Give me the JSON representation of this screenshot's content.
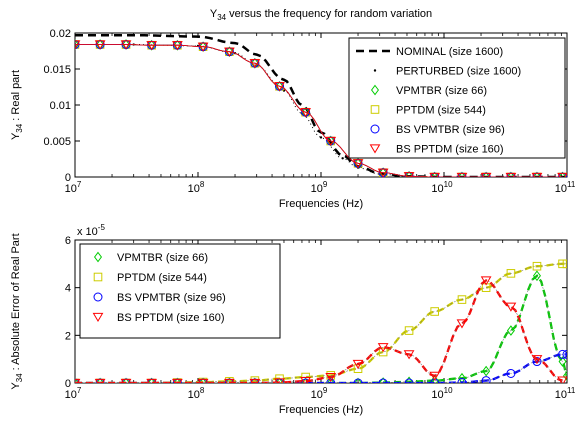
{
  "chart_data": [
    {
      "type": "line",
      "title": "Y34 versus the frequency for random variation",
      "title_main": "Y",
      "title_sub": "34",
      "title_rest": " versus the frequency for random variation",
      "xlabel": "Frequencies (Hz)",
      "ylabel_main": "Y",
      "ylabel_sub": "34",
      "ylabel_rest": " : Real part",
      "x_scale": "log",
      "xlim": [
        10000000.0,
        100000000000.0
      ],
      "ylim": [
        0,
        0.02
      ],
      "x_tick_base": "10",
      "x_tick_exponents": [
        "7",
        "8",
        "9",
        "10",
        "11"
      ],
      "y_ticks": [
        "0",
        "0.005",
        "0.01",
        "0.015",
        "0.02"
      ],
      "y_tick_values": [
        0,
        0.005,
        0.01,
        0.015,
        0.02
      ],
      "grid": false,
      "legend_position": "top-right",
      "series": [
        {
          "name": "NOMINAL (size 1600)",
          "style": "dashed",
          "color": "#000000",
          "marker": "none",
          "x": [
            10000000.0,
            30000000.0,
            100000000.0,
            200000000.0,
            300000000.0,
            500000000.0,
            700000000.0,
            1000000000.0,
            1500000000.0,
            2000000000.0,
            3000000000.0,
            5000000000.0,
            10000000000.0,
            100000000000.0
          ],
          "y": [
            0.0197,
            0.0197,
            0.0195,
            0.0186,
            0.017,
            0.0135,
            0.01,
            0.0062,
            0.003,
            0.0015,
            0.0005,
            0.0001,
            0.0,
            0.0
          ]
        },
        {
          "name": "PERTURBED (size 1600)",
          "style": "dotted",
          "color": "#000000",
          "marker": "dot",
          "x": [
            10000000.0,
            30000000.0,
            100000000.0,
            200000000.0,
            300000000.0,
            500000000.0,
            700000000.0,
            1000000000.0,
            1500000000.0,
            2000000000.0,
            3000000000.0,
            5000000000.0,
            10000000000.0,
            100000000000.0
          ],
          "y": [
            0.0184,
            0.0184,
            0.0182,
            0.0172,
            0.0155,
            0.012,
            0.0088,
            0.0055,
            0.0026,
            0.0013,
            0.0004,
            0.0001,
            0.0,
            0.0
          ]
        },
        {
          "name": "VPMTBR (size 66)",
          "style": "solid",
          "color": "#00cc00",
          "marker": "diamond",
          "x": [
            10000000.0,
            16000000.0,
            26000000.0,
            42000000.0,
            68000000.0,
            110000000.0,
            180000000.0,
            290000000.0,
            460000000.0,
            750000000.0,
            1200000000.0,
            2000000000.0,
            3200000000.0,
            5200000000.0,
            8400000000.0,
            14000000000.0,
            22000000000.0,
            35000000000.0,
            57000000000.0,
            92000000000.0
          ],
          "y": [
            0.0184,
            0.0184,
            0.0184,
            0.0183,
            0.0183,
            0.0181,
            0.0174,
            0.0158,
            0.0126,
            0.009,
            0.005,
            0.0019,
            0.0006,
            0.0001,
            0.0,
            0.0,
            0.0,
            0.0,
            0.0,
            0.0
          ]
        },
        {
          "name": "PPTDM (size 544)",
          "style": "solid",
          "color": "#cccc00",
          "marker": "square",
          "x": [
            10000000.0,
            16000000.0,
            26000000.0,
            42000000.0,
            68000000.0,
            110000000.0,
            180000000.0,
            290000000.0,
            460000000.0,
            750000000.0,
            1200000000.0,
            2000000000.0,
            3200000000.0,
            5200000000.0,
            8400000000.0,
            14000000000.0,
            22000000000.0,
            35000000000.0,
            57000000000.0,
            92000000000.0
          ],
          "y": [
            0.0184,
            0.0184,
            0.0184,
            0.0183,
            0.0183,
            0.0181,
            0.0174,
            0.0158,
            0.0126,
            0.009,
            0.005,
            0.0019,
            0.0006,
            0.0001,
            0.0,
            0.0,
            0.0,
            0.0,
            0.0,
            0.0
          ]
        },
        {
          "name": "BS VPMTBR (size 96)",
          "style": "solid",
          "color": "#0000ff",
          "marker": "circle",
          "x": [
            10000000.0,
            16000000.0,
            26000000.0,
            42000000.0,
            68000000.0,
            110000000.0,
            180000000.0,
            290000000.0,
            460000000.0,
            750000000.0,
            1200000000.0,
            2000000000.0,
            3200000000.0,
            5200000000.0,
            8400000000.0,
            14000000000.0,
            22000000000.0,
            35000000000.0,
            57000000000.0,
            92000000000.0
          ],
          "y": [
            0.0184,
            0.0184,
            0.0184,
            0.0183,
            0.0183,
            0.0181,
            0.0174,
            0.0158,
            0.0126,
            0.009,
            0.005,
            0.0019,
            0.0006,
            0.0001,
            0.0,
            0.0,
            0.0,
            0.0,
            0.0,
            0.0
          ]
        },
        {
          "name": "BS PPTDM (size 160)",
          "style": "solid",
          "color": "#ff0000",
          "marker": "triangle-down",
          "x": [
            10000000.0,
            16000000.0,
            26000000.0,
            42000000.0,
            68000000.0,
            110000000.0,
            180000000.0,
            290000000.0,
            460000000.0,
            750000000.0,
            1200000000.0,
            2000000000.0,
            3200000000.0,
            5200000000.0,
            8400000000.0,
            14000000000.0,
            22000000000.0,
            35000000000.0,
            57000000000.0,
            92000000000.0
          ],
          "y": [
            0.0184,
            0.0184,
            0.0184,
            0.0183,
            0.0183,
            0.0181,
            0.0174,
            0.0158,
            0.0126,
            0.009,
            0.005,
            0.0019,
            0.0006,
            0.0001,
            0.0,
            0.0,
            0.0,
            0.0,
            0.0,
            0.0
          ]
        }
      ]
    },
    {
      "type": "line",
      "xlabel": "Frequencies (Hz)",
      "ylabel_main": "Y",
      "ylabel_sub": "34",
      "ylabel_rest": " : Absolute Error of Real Part",
      "x_scale": "log",
      "xlim": [
        10000000.0,
        100000000000.0
      ],
      "ylim": [
        0,
        6e-05
      ],
      "y_multiplier_base": "x 10",
      "y_multiplier_exp": "-5",
      "x_tick_base": "10",
      "x_tick_exponents": [
        "7",
        "8",
        "9",
        "10",
        "11"
      ],
      "y_ticks": [
        "0",
        "2",
        "4",
        "6"
      ],
      "y_tick_values": [
        0,
        2e-05,
        4e-05,
        6e-05
      ],
      "grid": false,
      "legend_position": "top-left",
      "series": [
        {
          "name": "VPMTBR (size 66)",
          "color": "#00cc00",
          "marker": "diamond",
          "x": [
            10000000.0,
            16000000.0,
            26000000.0,
            42000000.0,
            68000000.0,
            110000000.0,
            180000000.0,
            290000000.0,
            460000000.0,
            750000000.0,
            1200000000.0,
            2000000000.0,
            3200000000.0,
            5200000000.0,
            8400000000.0,
            14000000000.0,
            22000000000.0,
            35000000000.0,
            57000000000.0,
            92000000000.0,
            100000000000.0
          ],
          "y": [
            0,
            0,
            0,
            0,
            0,
            0,
            0,
            0,
            0,
            0,
            0,
            0,
            2e-07,
            5e-07,
            1e-06,
            2e-06,
            5e-06,
            2.2e-05,
            4.5e-05,
            9e-06,
            3e-06
          ]
        },
        {
          "name": "PPTDM (size 544)",
          "color": "#cccc00",
          "marker": "square",
          "x": [
            10000000.0,
            16000000.0,
            26000000.0,
            42000000.0,
            68000000.0,
            110000000.0,
            180000000.0,
            290000000.0,
            460000000.0,
            750000000.0,
            1200000000.0,
            2000000000.0,
            3200000000.0,
            5200000000.0,
            8400000000.0,
            14000000000.0,
            22000000000.0,
            35000000000.0,
            57000000000.0,
            92000000000.0,
            100000000000.0
          ],
          "y": [
            0,
            0,
            0,
            0,
            2e-07,
            4e-07,
            7e-07,
            1e-06,
            1.8e-06,
            2.5e-06,
            3.2e-06,
            6e-06,
            1.3e-05,
            2.2e-05,
            3e-05,
            3.5e-05,
            4e-05,
            4.6e-05,
            4.9e-05,
            5e-05,
            5e-05
          ]
        },
        {
          "name": "BS VPMTBR (size 96)",
          "color": "#0000ff",
          "marker": "circle",
          "x": [
            10000000.0,
            16000000.0,
            26000000.0,
            42000000.0,
            68000000.0,
            110000000.0,
            180000000.0,
            290000000.0,
            460000000.0,
            750000000.0,
            1200000000.0,
            2000000000.0,
            3200000000.0,
            5200000000.0,
            8400000000.0,
            14000000000.0,
            22000000000.0,
            35000000000.0,
            57000000000.0,
            92000000000.0,
            100000000000.0
          ],
          "y": [
            0,
            0,
            0,
            0,
            0,
            0,
            0,
            0,
            0,
            0,
            0,
            0,
            0,
            0,
            0,
            2e-07,
            1e-06,
            4e-06,
            9e-06,
            1.2e-05,
            1.2e-05
          ]
        },
        {
          "name": "BS PPTDM (size 160)",
          "color": "#ff0000",
          "marker": "triangle-down",
          "x": [
            10000000.0,
            16000000.0,
            26000000.0,
            42000000.0,
            68000000.0,
            110000000.0,
            180000000.0,
            290000000.0,
            460000000.0,
            750000000.0,
            1200000000.0,
            2000000000.0,
            3200000000.0,
            5200000000.0,
            8400000000.0,
            14000000000.0,
            22000000000.0,
            35000000000.0,
            57000000000.0,
            92000000000.0
          ],
          "y": [
            0,
            0,
            0,
            0,
            0,
            0,
            0,
            0,
            2e-07,
            8e-07,
            2.5e-06,
            8e-06,
            1.5e-05,
            1.2e-05,
            3e-06,
            2.5e-05,
            4.3e-05,
            3.2e-05,
            1e-05,
            1e-06
          ]
        }
      ]
    }
  ]
}
